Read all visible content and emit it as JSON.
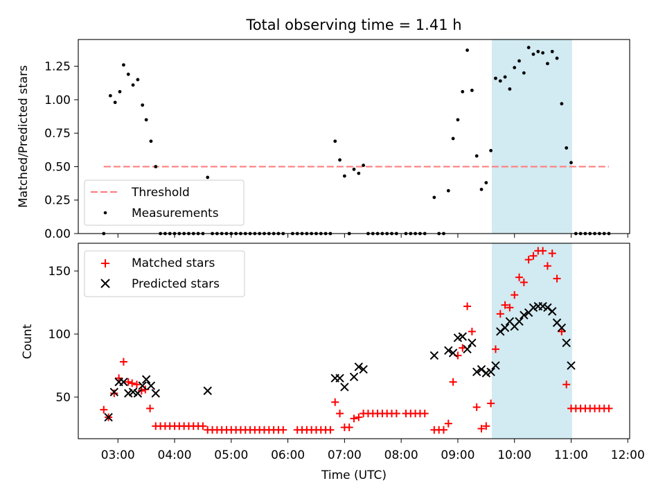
{
  "chart_data": [
    {
      "type": "scatter",
      "title": "Total observing time = 1.41 h",
      "xlabel": "",
      "ylabel": "Matched/Predicted stars",
      "xlim": [
        "02:18",
        "12:02"
      ],
      "ylim": [
        0,
        1.45
      ],
      "yticks": [
        "0.00",
        "0.25",
        "0.50",
        "0.75",
        "1.00",
        "1.25"
      ],
      "legend": {
        "placement": "lower-left",
        "entries": [
          "Threshold",
          "Measurements"
        ]
      },
      "shaded_region": [
        "09:36",
        "11:01"
      ],
      "threshold": {
        "name": "Threshold",
        "value": 0.5,
        "x": [
          "02:45",
          "11:40"
        ],
        "color": "#ff7f7f",
        "style": "dashed"
      },
      "series": [
        {
          "name": "Measurements",
          "color": "#000000",
          "points": [
            [
              "02:45",
              0.0
            ],
            [
              "02:52",
              1.03
            ],
            [
              "02:57",
              0.98
            ],
            [
              "03:02",
              1.06
            ],
            [
              "03:06",
              1.26
            ],
            [
              "03:11",
              1.19
            ],
            [
              "03:16",
              1.11
            ],
            [
              "03:21",
              1.15
            ],
            [
              "03:26",
              0.96
            ],
            [
              "03:30",
              0.85
            ],
            [
              "03:35",
              0.69
            ],
            [
              "03:40",
              0.5
            ],
            [
              "03:45",
              0.0
            ],
            [
              "03:50",
              0.0
            ],
            [
              "03:55",
              0.0
            ],
            [
              "04:00",
              0.0
            ],
            [
              "04:05",
              0.0
            ],
            [
              "04:10",
              0.0
            ],
            [
              "04:15",
              0.0
            ],
            [
              "04:20",
              0.0
            ],
            [
              "04:25",
              0.0
            ],
            [
              "04:30",
              0.0
            ],
            [
              "04:35",
              0.42
            ],
            [
              "04:40",
              0.0
            ],
            [
              "04:45",
              0.0
            ],
            [
              "04:50",
              0.0
            ],
            [
              "04:55",
              0.0
            ],
            [
              "05:00",
              0.0
            ],
            [
              "05:05",
              0.0
            ],
            [
              "05:10",
              0.0
            ],
            [
              "05:15",
              0.0
            ],
            [
              "05:20",
              0.0
            ],
            [
              "05:25",
              0.0
            ],
            [
              "05:30",
              0.0
            ],
            [
              "05:35",
              0.0
            ],
            [
              "05:40",
              0.0
            ],
            [
              "05:45",
              0.0
            ],
            [
              "05:50",
              0.0
            ],
            [
              "05:55",
              0.0
            ],
            [
              "06:05",
              0.0
            ],
            [
              "06:10",
              0.0
            ],
            [
              "06:15",
              0.0
            ],
            [
              "06:20",
              0.0
            ],
            [
              "06:25",
              0.0
            ],
            [
              "06:30",
              0.0
            ],
            [
              "06:35",
              0.0
            ],
            [
              "06:40",
              0.0
            ],
            [
              "06:45",
              0.0
            ],
            [
              "06:50",
              0.69
            ],
            [
              "06:55",
              0.55
            ],
            [
              "07:00",
              0.43
            ],
            [
              "07:05",
              0.0
            ],
            [
              "07:10",
              0.48
            ],
            [
              "07:15",
              0.45
            ],
            [
              "07:20",
              0.51
            ],
            [
              "07:25",
              0.0
            ],
            [
              "07:30",
              0.0
            ],
            [
              "07:35",
              0.0
            ],
            [
              "07:40",
              0.0
            ],
            [
              "07:45",
              0.0
            ],
            [
              "07:50",
              0.0
            ],
            [
              "07:55",
              0.0
            ],
            [
              "08:05",
              0.0
            ],
            [
              "08:10",
              0.0
            ],
            [
              "08:15",
              0.0
            ],
            [
              "08:20",
              0.0
            ],
            [
              "08:25",
              0.0
            ],
            [
              "08:35",
              0.27
            ],
            [
              "08:40",
              0.0
            ],
            [
              "08:45",
              0.0
            ],
            [
              "08:50",
              0.32
            ],
            [
              "08:55",
              0.71
            ],
            [
              "09:00",
              0.85
            ],
            [
              "09:05",
              1.06
            ],
            [
              "09:10",
              1.37
            ],
            [
              "09:15",
              1.07
            ],
            [
              "09:20",
              0.58
            ],
            [
              "09:25",
              0.33
            ],
            [
              "09:30",
              0.38
            ],
            [
              "09:35",
              0.62
            ],
            [
              "09:40",
              1.16
            ],
            [
              "09:45",
              1.14
            ],
            [
              "09:50",
              1.17
            ],
            [
              "09:55",
              1.08
            ],
            [
              "10:00",
              1.24
            ],
            [
              "10:05",
              1.29
            ],
            [
              "10:10",
              1.2
            ],
            [
              "10:15",
              1.39
            ],
            [
              "10:20",
              1.34
            ],
            [
              "10:25",
              1.36
            ],
            [
              "10:30",
              1.35
            ],
            [
              "10:35",
              1.27
            ],
            [
              "10:40",
              1.36
            ],
            [
              "10:45",
              1.31
            ],
            [
              "10:50",
              0.97
            ],
            [
              "10:55",
              0.64
            ],
            [
              "11:00",
              0.53
            ],
            [
              "11:05",
              0.0
            ],
            [
              "11:10",
              0.0
            ],
            [
              "11:15",
              0.0
            ],
            [
              "11:20",
              0.0
            ],
            [
              "11:25",
              0.0
            ],
            [
              "11:30",
              0.0
            ],
            [
              "11:35",
              0.0
            ],
            [
              "11:40",
              0.0
            ]
          ]
        }
      ]
    },
    {
      "type": "scatter",
      "title": "",
      "xlabel": "Time (UTC)",
      "ylabel": "Count",
      "xlim": [
        "02:18",
        "12:02"
      ],
      "ylim": [
        17,
        172
      ],
      "xticks": [
        "03:00",
        "04:00",
        "05:00",
        "06:00",
        "07:00",
        "08:00",
        "09:00",
        "10:00",
        "11:00",
        "12:00"
      ],
      "yticks": [
        "50",
        "100",
        "150"
      ],
      "legend": {
        "placement": "top-left",
        "entries": [
          "Matched stars",
          "Predicted stars"
        ]
      },
      "shaded_region": [
        "09:36",
        "11:01"
      ],
      "series": [
        {
          "name": "Matched stars",
          "marker": "+",
          "color": "#ff0000",
          "points": [
            [
              "02:45",
              40
            ],
            [
              "02:50",
              34
            ],
            [
              "02:56",
              53
            ],
            [
              "03:01",
              65
            ],
            [
              "03:06",
              78
            ],
            [
              "03:11",
              62
            ],
            [
              "03:15",
              61
            ],
            [
              "03:20",
              60
            ],
            [
              "03:25",
              55
            ],
            [
              "03:29",
              56
            ],
            [
              "03:34",
              41
            ],
            [
              "03:40",
              27
            ],
            [
              "03:45",
              27
            ],
            [
              "03:50",
              27
            ],
            [
              "03:55",
              27
            ],
            [
              "04:00",
              27
            ],
            [
              "04:05",
              27
            ],
            [
              "04:10",
              27
            ],
            [
              "04:15",
              27
            ],
            [
              "04:20",
              27
            ],
            [
              "04:25",
              27
            ],
            [
              "04:30",
              27
            ],
            [
              "04:35",
              24
            ],
            [
              "04:40",
              24
            ],
            [
              "04:45",
              24
            ],
            [
              "04:50",
              24
            ],
            [
              "04:55",
              24
            ],
            [
              "05:00",
              24
            ],
            [
              "05:05",
              24
            ],
            [
              "05:10",
              24
            ],
            [
              "05:15",
              24
            ],
            [
              "05:20",
              24
            ],
            [
              "05:25",
              24
            ],
            [
              "05:30",
              24
            ],
            [
              "05:35",
              24
            ],
            [
              "05:40",
              24
            ],
            [
              "05:45",
              24
            ],
            [
              "05:50",
              24
            ],
            [
              "05:55",
              24
            ],
            [
              "06:10",
              24
            ],
            [
              "06:15",
              24
            ],
            [
              "06:20",
              24
            ],
            [
              "06:25",
              24
            ],
            [
              "06:30",
              24
            ],
            [
              "06:35",
              24
            ],
            [
              "06:40",
              24
            ],
            [
              "06:45",
              24
            ],
            [
              "06:50",
              46
            ],
            [
              "06:55",
              37
            ],
            [
              "07:00",
              26
            ],
            [
              "07:05",
              26
            ],
            [
              "07:10",
              33
            ],
            [
              "07:15",
              34
            ],
            [
              "07:20",
              37
            ],
            [
              "07:25",
              37
            ],
            [
              "07:30",
              37
            ],
            [
              "07:35",
              37
            ],
            [
              "07:40",
              37
            ],
            [
              "07:45",
              37
            ],
            [
              "07:50",
              37
            ],
            [
              "07:55",
              37
            ],
            [
              "08:05",
              37
            ],
            [
              "08:10",
              37
            ],
            [
              "08:15",
              37
            ],
            [
              "08:20",
              37
            ],
            [
              "08:25",
              37
            ],
            [
              "08:35",
              24
            ],
            [
              "08:40",
              24
            ],
            [
              "08:45",
              24
            ],
            [
              "08:50",
              29
            ],
            [
              "08:55",
              62
            ],
            [
              "09:00",
              83
            ],
            [
              "09:05",
              89
            ],
            [
              "09:10",
              122
            ],
            [
              "09:15",
              102
            ],
            [
              "09:20",
              42
            ],
            [
              "09:25",
              25
            ],
            [
              "09:30",
              27
            ],
            [
              "09:35",
              45
            ],
            [
              "09:40",
              88
            ],
            [
              "09:45",
              116
            ],
            [
              "09:50",
              123
            ],
            [
              "09:55",
              121
            ],
            [
              "10:00",
              131
            ],
            [
              "10:05",
              145
            ],
            [
              "10:10",
              141
            ],
            [
              "10:15",
              159
            ],
            [
              "10:20",
              162
            ],
            [
              "10:25",
              166
            ],
            [
              "10:30",
              166
            ],
            [
              "10:35",
              154
            ],
            [
              "10:40",
              164
            ],
            [
              "10:45",
              144
            ],
            [
              "10:50",
              102
            ],
            [
              "10:55",
              60
            ],
            [
              "11:00",
              41
            ],
            [
              "11:05",
              41
            ],
            [
              "11:10",
              41
            ],
            [
              "11:15",
              41
            ],
            [
              "11:20",
              41
            ],
            [
              "11:25",
              41
            ],
            [
              "11:30",
              41
            ],
            [
              "11:35",
              41
            ],
            [
              "11:40",
              41
            ]
          ]
        },
        {
          "name": "Predicted stars",
          "marker": "x",
          "color": "#000000",
          "points": [
            [
              "02:50",
              34
            ],
            [
              "02:56",
              54
            ],
            [
              "03:01",
              62
            ],
            [
              "03:06",
              62
            ],
            [
              "03:11",
              53
            ],
            [
              "03:16",
              54
            ],
            [
              "03:21",
              53
            ],
            [
              "03:26",
              59
            ],
            [
              "03:30",
              64
            ],
            [
              "03:35",
              59
            ],
            [
              "03:40",
              53
            ],
            [
              "04:35",
              55
            ],
            [
              "06:50",
              65
            ],
            [
              "06:55",
              65
            ],
            [
              "07:00",
              58
            ],
            [
              "07:10",
              66
            ],
            [
              "07:15",
              74
            ],
            [
              "07:20",
              72
            ],
            [
              "08:35",
              83
            ],
            [
              "08:50",
              87
            ],
            [
              "08:55",
              85
            ],
            [
              "09:00",
              97
            ],
            [
              "09:05",
              98
            ],
            [
              "09:10",
              88
            ],
            [
              "09:15",
              93
            ],
            [
              "09:20",
              70
            ],
            [
              "09:25",
              72
            ],
            [
              "09:30",
              69
            ],
            [
              "09:35",
              70
            ],
            [
              "09:40",
              75
            ],
            [
              "09:45",
              102
            ],
            [
              "09:50",
              105
            ],
            [
              "09:55",
              110
            ],
            [
              "10:00",
              106
            ],
            [
              "10:05",
              110
            ],
            [
              "10:10",
              115
            ],
            [
              "10:15",
              117
            ],
            [
              "10:20",
              121
            ],
            [
              "10:25",
              122
            ],
            [
              "10:30",
              122
            ],
            [
              "10:35",
              121
            ],
            [
              "10:40",
              118
            ],
            [
              "10:45",
              109
            ],
            [
              "10:50",
              105
            ],
            [
              "10:55",
              93
            ],
            [
              "11:00",
              75
            ]
          ]
        }
      ]
    }
  ]
}
